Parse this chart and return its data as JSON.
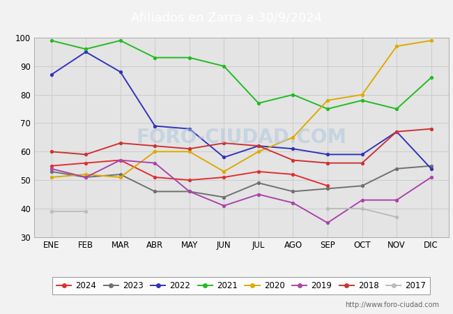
{
  "title": "Afiliados en Zarra a 30/9/2024",
  "title_bg_color": "#4d88d4",
  "title_text_color": "white",
  "xlim": [
    -0.5,
    11.5
  ],
  "ylim": [
    30,
    100
  ],
  "yticks": [
    30,
    40,
    50,
    60,
    70,
    80,
    90,
    100
  ],
  "months": [
    "ENE",
    "FEB",
    "MAR",
    "ABR",
    "MAY",
    "JUN",
    "JUL",
    "AGO",
    "SEP",
    "OCT",
    "NOV",
    "DIC"
  ],
  "watermark": "FORO-CIUDAD.COM",
  "url": "http://www.foro-ciudad.com",
  "series": {
    "2024": {
      "color": "#e03030",
      "data": [
        55,
        56,
        57,
        51,
        50,
        51,
        53,
        52,
        48,
        null,
        null,
        null
      ]
    },
    "2023": {
      "color": "#707070",
      "data": [
        53,
        51,
        52,
        46,
        46,
        44,
        49,
        46,
        47,
        48,
        54,
        55
      ]
    },
    "2022": {
      "color": "#3333bb",
      "data": [
        87,
        95,
        88,
        69,
        68,
        58,
        62,
        61,
        59,
        59,
        67,
        54
      ]
    },
    "2021": {
      "color": "#22bb22",
      "data": [
        99,
        96,
        99,
        93,
        93,
        90,
        77,
        80,
        75,
        78,
        75,
        86
      ]
    },
    "2020": {
      "color": "#ddaa00",
      "data": [
        51,
        52,
        51,
        60,
        60,
        53,
        60,
        65,
        78,
        80,
        97,
        99
      ]
    },
    "2019": {
      "color": "#aa44aa",
      "data": [
        54,
        51,
        57,
        56,
        46,
        41,
        45,
        42,
        35,
        43,
        43,
        51
      ]
    },
    "2018": {
      "color": "#cc3333",
      "data": [
        60,
        59,
        63,
        62,
        61,
        63,
        62,
        57,
        56,
        56,
        67,
        68
      ]
    },
    "2017": {
      "color": "#bbbbbb",
      "data": [
        39,
        39,
        null,
        null,
        null,
        null,
        null,
        null,
        40,
        40,
        37,
        null
      ]
    }
  },
  "legend_order": [
    "2024",
    "2023",
    "2022",
    "2021",
    "2020",
    "2019",
    "2018",
    "2017"
  ],
  "grid_color": "#cccccc",
  "bg_color": "#f2f2f2",
  "plot_bg_color": "#e4e4e4"
}
